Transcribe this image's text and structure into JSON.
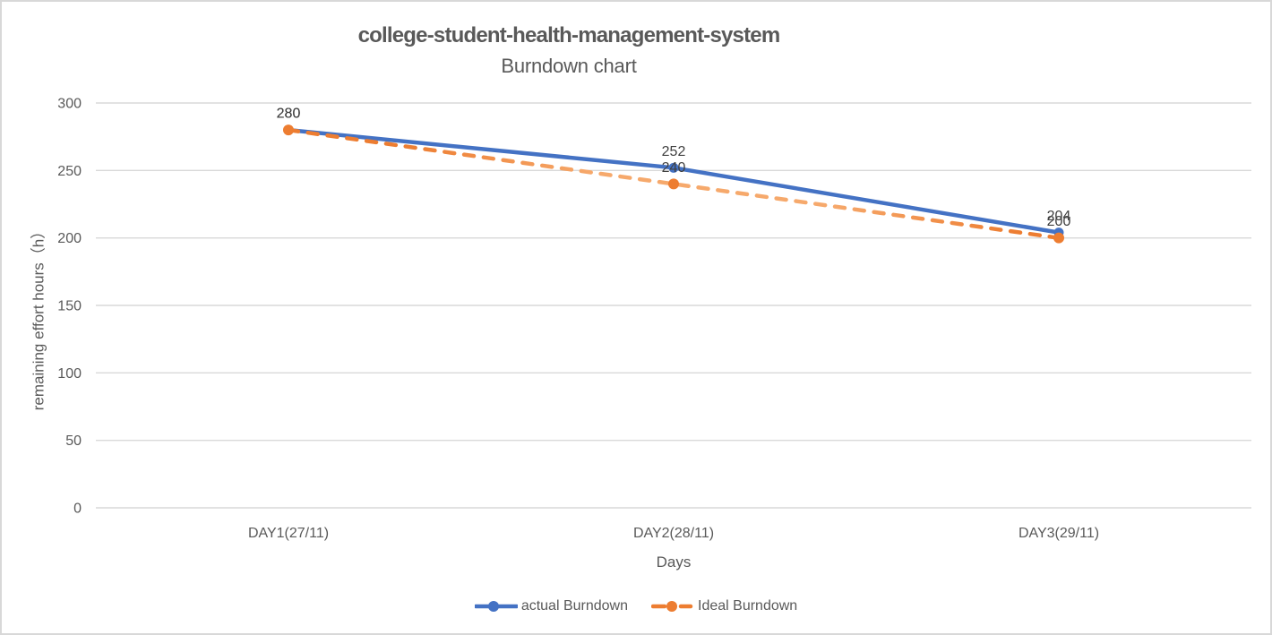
{
  "chart_data": {
    "type": "line",
    "title": "college-student-health-management-system",
    "subtitle": "Burndown chart",
    "xlabel": "Days",
    "ylabel": "remaining effort hours（h）",
    "categories": [
      "DAY1(27/11)",
      "DAY2(28/11)",
      "DAY3(29/11)"
    ],
    "series": [
      {
        "name": "actual Burndown",
        "values": [
          280,
          252,
          204
        ],
        "color": "#4472C4",
        "style": "solid"
      },
      {
        "name": "Ideal Burndown",
        "values": [
          280,
          240,
          200
        ],
        "color": "#ED7D31",
        "color_light": "#F6A96C",
        "style": "dashed"
      }
    ],
    "ylim": [
      0,
      300
    ],
    "yticks": [
      0,
      50,
      100,
      150,
      200,
      250,
      300
    ],
    "grid": "horizontal",
    "legend_position": "bottom",
    "data_labels": true,
    "colors": {
      "gridline": "#D9D9D9",
      "axis_text": "#595959",
      "title_text": "#595959",
      "data_label_text": "#404040"
    }
  }
}
